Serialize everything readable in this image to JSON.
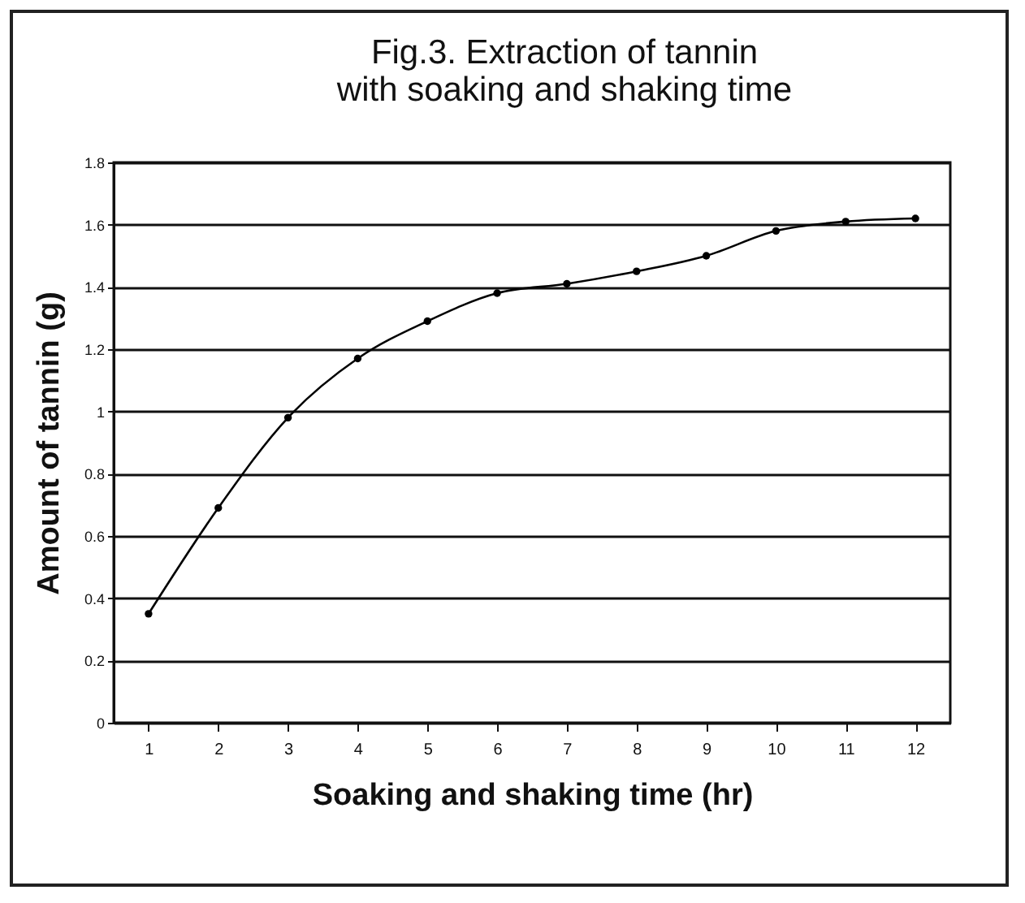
{
  "chart_data": {
    "type": "line",
    "title": "Fig.3. Extraction of tannin with soaking and shaking time",
    "xlabel": "Soaking and shaking time (hr)",
    "ylabel": "Amount of tannin (g)",
    "x": [
      1,
      2,
      3,
      4,
      5,
      6,
      7,
      8,
      9,
      10,
      11,
      12
    ],
    "series": [
      {
        "color": "#000000",
        "values": [
          0.35,
          0.69,
          0.98,
          1.17,
          1.29,
          1.38,
          1.41,
          1.45,
          1.5,
          1.58,
          1.61,
          1.62
        ]
      }
    ],
    "xlim": [
      0.5,
      12.5
    ],
    "xticks": [
      1,
      2,
      3,
      4,
      5,
      6,
      7,
      8,
      9,
      10,
      11,
      12
    ],
    "ylim": [
      0,
      1.8
    ],
    "yticks": [
      0,
      {
        "value": 0.2,
        "label": "0.2"
      },
      {
        "value": 0.4,
        "label": "0.4"
      },
      {
        "value": 0.6,
        "label": "0.6"
      },
      {
        "value": 0.8,
        "label": "0.8"
      },
      1,
      {
        "value": 1.2,
        "label": "1.2"
      },
      {
        "value": 1.4,
        "label": "1.4"
      },
      {
        "value": 1.6,
        "label": "1.6"
      },
      {
        "value": 1.8,
        "label": "1.8"
      }
    ],
    "grid": "y",
    "marker": "circle",
    "line_style": "solid"
  }
}
